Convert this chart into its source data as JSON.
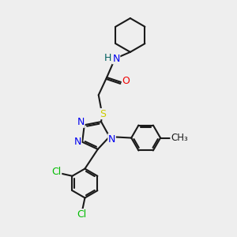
{
  "bg_color": "#eeeeee",
  "bond_color": "#1a1a1a",
  "bw": 1.5,
  "N_color": "#0000ee",
  "O_color": "#ee0000",
  "S_color": "#cccc00",
  "Cl_color": "#00bb00",
  "font_size": 9.5,
  "fig_w": 3.0,
  "fig_h": 3.0,
  "dpi": 100,
  "xlim": [
    0,
    10
  ],
  "ylim": [
    0,
    10
  ]
}
